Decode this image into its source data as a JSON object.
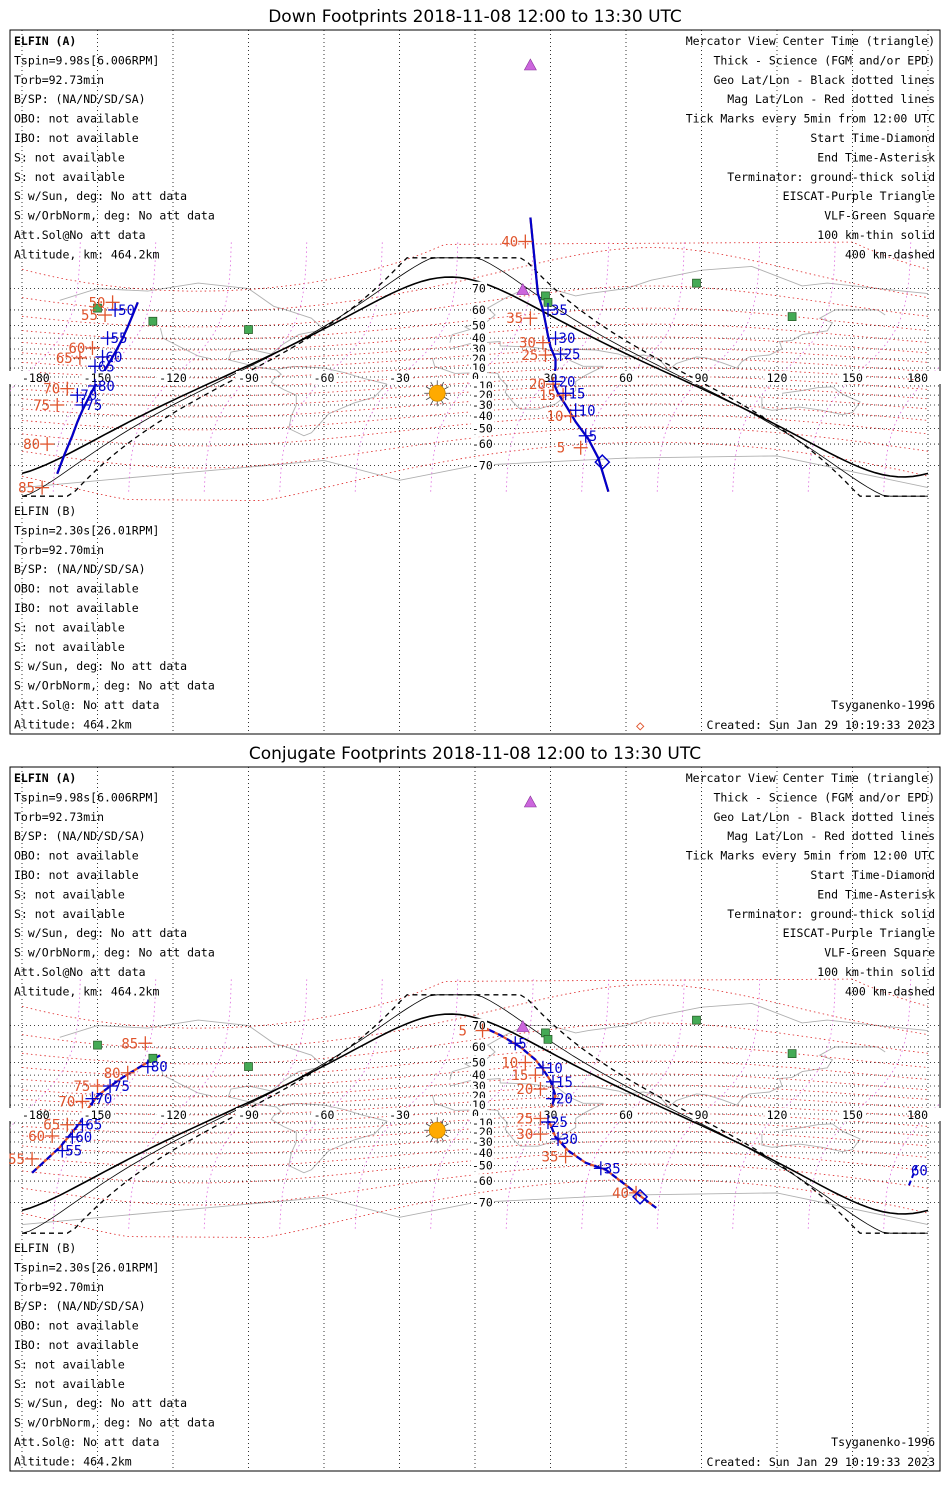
{
  "panels": [
    {
      "id": "down",
      "title": "Down Footprints 2018-11-08 12:00 to 13:30 UTC",
      "dashed": false,
      "info_left_a": [
        "ELFIN (A)",
        "Tspin=9.98s[6.006RPM]",
        "Torb=92.73min",
        "B/SP: (NA/ND/SD/SA)",
        "OBO: not available",
        "IBO: not available",
        "S: not available",
        "S: not available",
        "S w/Sun, deg: No att data",
        "S w/OrbNorm, deg: No att data",
        "Att.Sol@No att data",
        "Altitude, km: 464.2km"
      ],
      "info_left_b": [
        "ELFIN (B)",
        "Tspin=2.30s[26.01RPM]",
        "Torb=92.70min",
        "B/SP: (NA/ND/SD/SA)",
        "OBO: not available",
        "IBO: not available",
        "S: not available",
        "S: not available",
        "S w/Sun, deg: No att data",
        "S w/OrbNorm, deg: No att data",
        "Att.Sol@: No att data",
        "Altitude: 464.2km"
      ],
      "model": "Tsyganenko-1996",
      "created": "Created: Sun Jan 29 10:19:33 2023",
      "sc_a_track": [
        [
          -166,
          -73
        ],
        [
          -163,
          -65
        ],
        [
          -160,
          -55
        ],
        [
          -158,
          -45
        ],
        [
          -156,
          -35
        ],
        [
          -153,
          -20
        ],
        [
          -151,
          -10
        ],
        [
          -148,
          3
        ],
        [
          -146,
          13
        ],
        [
          -144,
          22
        ],
        [
          -142,
          31
        ],
        [
          -140,
          40
        ],
        [
          -138,
          49
        ],
        [
          -136,
          57
        ],
        [
          -134,
          64
        ]
      ],
      "sc_a_ticks": [
        [
          -151,
          -10,
          "80"
        ],
        [
          -156,
          -30,
          "75"
        ],
        [
          -158,
          -20,
          "70"
        ],
        [
          -151,
          12,
          "65"
        ],
        [
          -148,
          22,
          "60"
        ],
        [
          -146,
          40,
          "55"
        ],
        [
          -143,
          60,
          "50"
        ]
      ],
      "sc_b_track": [
        [
          22,
          85
        ],
        [
          25,
          68
        ],
        [
          27,
          60
        ],
        [
          28,
          52
        ],
        [
          29,
          42
        ],
        [
          30,
          32
        ],
        [
          32,
          20
        ],
        [
          32,
          10
        ],
        [
          31,
          -5
        ],
        [
          33,
          -18
        ],
        [
          36,
          -30
        ],
        [
          40,
          -45
        ],
        [
          45,
          -57
        ],
        [
          49,
          -67
        ],
        [
          53,
          -78
        ]
      ],
      "sc_b_ticks": [
        [
          29,
          60,
          "35"
        ],
        [
          32,
          40,
          "30"
        ],
        [
          34,
          25,
          "25"
        ],
        [
          32,
          -5,
          "20"
        ],
        [
          36,
          -18,
          "15"
        ],
        [
          40,
          -35,
          "10"
        ],
        [
          44,
          -55,
          "5"
        ]
      ],
      "red_ticks": [
        [
          20,
          82,
          "40"
        ],
        [
          22,
          55,
          "35"
        ],
        [
          27,
          36,
          "30"
        ],
        [
          28,
          24,
          "25"
        ],
        [
          31,
          -8,
          "20"
        ],
        [
          35,
          -20,
          "15"
        ],
        [
          38,
          -40,
          "10"
        ],
        [
          42,
          -62,
          "5"
        ]
      ],
      "red_ticks_a": [
        [
          -144,
          64,
          "50"
        ],
        [
          -147,
          57,
          "55"
        ],
        [
          -152,
          31,
          "60"
        ],
        [
          -157,
          21,
          "65"
        ],
        [
          -162,
          -13,
          "70"
        ],
        [
          -166,
          -30,
          "75"
        ],
        [
          -170,
          -60,
          "80"
        ],
        [
          -172,
          -77,
          "85"
        ]
      ],
      "diamond_end": "◇"
    },
    {
      "id": "conj",
      "title": "Conjugate Footprints 2018-11-08 12:00 to 13:30 UTC",
      "dashed": true,
      "info_left_a": [
        "ELFIN (A)",
        "Tspin=9.98s[6.006RPM]",
        "Torb=92.73min",
        "B/SP: (NA/ND/SD/SA)",
        "OBO: not available",
        "IBO: not available",
        "S: not available",
        "S: not available",
        "S w/Sun, deg: No att data",
        "S w/OrbNorm, deg: No att data",
        "Att.Sol@No att data",
        "Altitude, km: 464.2km"
      ],
      "info_left_b": [
        "ELFIN (B)",
        "Tspin=2.30s[26.01RPM]",
        "Torb=92.70min",
        "B/SP: (NA/ND/SD/SA)",
        "OBO: not available",
        "IBO: not available",
        "S: not available",
        "S: not available",
        "S w/Sun, deg: No att data",
        "S w/OrbNorm, deg: No att data",
        "Att.Sol@: No att data",
        "Altitude: 464.2km"
      ],
      "model": "Tsyganenko-1996",
      "created": "Created: Sun Jan 29 10:19:33 2023",
      "sc_a_track": [
        [
          -176,
          -55
        ],
        [
          -170,
          -45
        ],
        [
          -165,
          -35
        ],
        [
          -160,
          -20
        ],
        [
          -157,
          -10
        ],
        [
          -154,
          5
        ],
        [
          -150,
          20
        ],
        [
          -146,
          28
        ],
        [
          -140,
          38
        ],
        [
          -132,
          48
        ],
        [
          -125,
          55
        ]
      ],
      "sc_a_ticks": [
        [
          -164,
          -38,
          "55"
        ],
        [
          -160,
          -25,
          "60"
        ],
        [
          -156,
          -12,
          "65"
        ],
        [
          -152,
          17,
          "70"
        ],
        [
          -145,
          30,
          "75"
        ],
        [
          -130,
          47,
          "80"
        ]
      ],
      "sc_b_track": [
        [
          2,
          70
        ],
        [
          10,
          66
        ],
        [
          18,
          60
        ],
        [
          24,
          52
        ],
        [
          27,
          45
        ],
        [
          30,
          35
        ],
        [
          32,
          20
        ],
        [
          30,
          5
        ],
        [
          29,
          -5
        ],
        [
          32,
          -25
        ],
        [
          37,
          -38
        ],
        [
          44,
          -48
        ],
        [
          52,
          -53
        ],
        [
          64,
          -66
        ],
        [
          72,
          -72
        ]
      ],
      "sc_b_ticks": [
        [
          16,
          62,
          "5"
        ],
        [
          27,
          46,
          "10"
        ],
        [
          31,
          34,
          "15"
        ],
        [
          31,
          17,
          "20"
        ],
        [
          29,
          -9,
          "25"
        ],
        [
          33,
          -27,
          "30"
        ],
        [
          50,
          -52,
          "35"
        ]
      ],
      "red_ticks": [
        [
          3,
          68,
          "5"
        ],
        [
          20,
          50,
          "10"
        ],
        [
          24,
          40,
          "15"
        ],
        [
          26,
          27,
          "20"
        ],
        [
          26,
          -5,
          "25"
        ],
        [
          26,
          -22,
          "30"
        ],
        [
          36,
          -43,
          "35"
        ],
        [
          64,
          -66,
          "40"
        ]
      ],
      "red_ticks_a": [
        [
          -131,
          62,
          "85"
        ],
        [
          -138,
          42,
          "80"
        ],
        [
          -150,
          30,
          "75"
        ],
        [
          -156,
          14,
          "70"
        ],
        [
          -162,
          -12,
          "65"
        ],
        [
          -168,
          -24,
          "60"
        ],
        [
          -176,
          -45,
          "55"
        ]
      ],
      "far_tick": "60",
      "diamond_end": ""
    }
  ],
  "legend_right": [
    {
      "text": "Mercator View Center Time (triangle)",
      "color": "#000000"
    },
    {
      "text": "Thick - Science (FGM and/or EPD)",
      "color": "#000000"
    },
    {
      "text": "Geo Lat/Lon - Black dotted lines",
      "color": "#000000"
    },
    {
      "text": "Mag Lat/Lon - Red dotted lines",
      "color": "#dd2222"
    },
    {
      "text": "Tick Marks every 5min from 12:00 UTC",
      "color": "#000000"
    },
    {
      "text": "Start Time-Diamond",
      "color": "#000000"
    },
    {
      "text": "End Time-Asterisk",
      "color": "#000000"
    },
    {
      "text": "Terminator: ground-thick solid",
      "color": "#000000"
    },
    {
      "text": "EISCAT-Purple Triangle",
      "color": "#cc66dd"
    },
    {
      "text": "VLF-Green Square",
      "color": "#44aa55"
    },
    {
      "text": "100 km-thin solid",
      "color": "#000000"
    },
    {
      "text": "400 km-dashed",
      "color": "#000000"
    }
  ],
  "lon_labels": [
    "-180",
    "-150",
    "-120",
    "-90",
    "-60",
    "-30",
    "0",
    "30",
    "60",
    "90",
    "120",
    "150",
    "180"
  ],
  "lat_labels": [
    "70",
    "60",
    "50",
    "40",
    "30",
    "20",
    "10",
    "0",
    "-10",
    "-20",
    "-30",
    "-40",
    "-50",
    "-60",
    "-70"
  ],
  "colors": {
    "spacecraft_a": "#0000cc",
    "spacecraft_b": "#e0542c",
    "mag_grid": "#dd2222",
    "eiscat": "#cc66dd",
    "vlf": "#44aa55",
    "sun": "#ffaa00"
  },
  "icons": {
    "sun": "sun-icon",
    "eiscat": "triangle-icon",
    "vlf": "square-icon"
  }
}
